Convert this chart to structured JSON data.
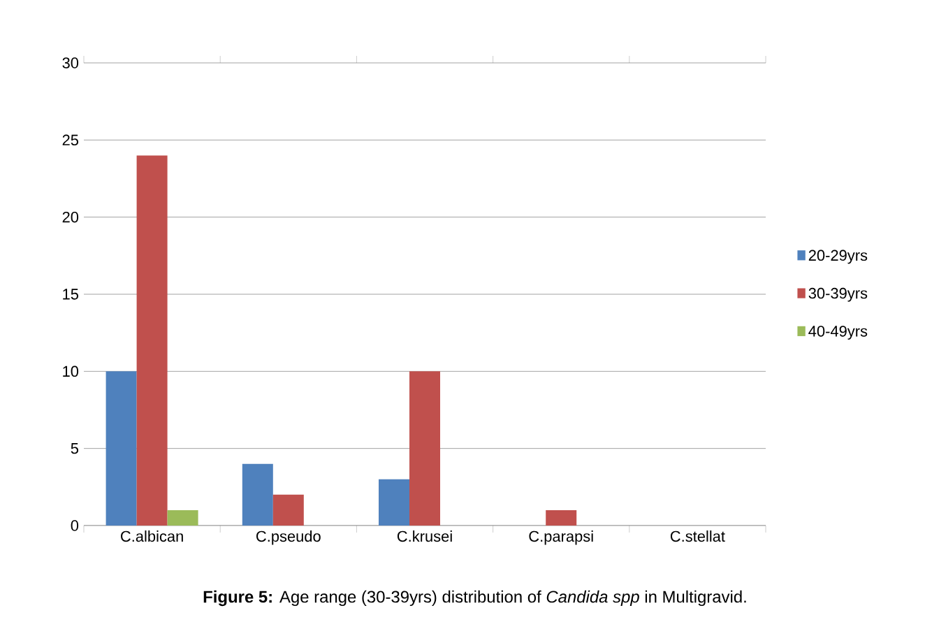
{
  "chart_data": {
    "type": "bar",
    "categories": [
      "C.albican",
      "C.pseudo",
      "C.krusei",
      "C.parapsi",
      "C.stellat"
    ],
    "series": [
      {
        "name": "20-29yrs",
        "color": "#4f81bd",
        "values": [
          10,
          4,
          3,
          0,
          0
        ]
      },
      {
        "name": "30-39yrs",
        "color": "#c0504d",
        "values": [
          24,
          2,
          10,
          1,
          0
        ]
      },
      {
        "name": "40-49yrs",
        "color": "#9bbb59",
        "values": [
          1,
          0,
          0,
          0,
          0
        ]
      }
    ],
    "ylim": [
      0,
      30
    ],
    "yticks": [
      0,
      5,
      10,
      15,
      20,
      25,
      30
    ],
    "grid": "y",
    "legend": "right",
    "annotations": [
      "**Figure 5:** Age range (30-39yrs) distribution of *Candida spp* in Multigravid."
    ]
  }
}
